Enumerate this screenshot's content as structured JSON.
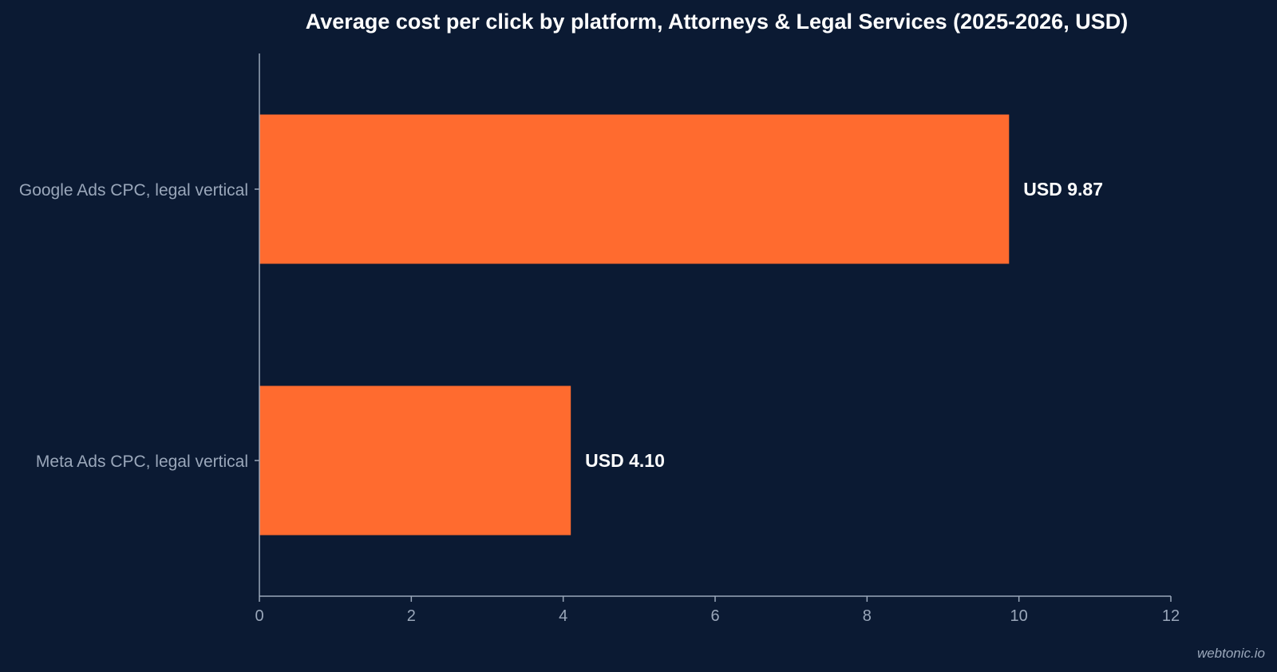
{
  "chart_data": {
    "type": "bar",
    "orientation": "horizontal",
    "title": "Average cost per click by platform, Attorneys & Legal Services (2025-2026, USD)",
    "xlabel": "",
    "ylabel": "",
    "categories": [
      "Google Ads CPC, legal vertical",
      "Meta Ads CPC, legal vertical"
    ],
    "values": [
      9.87,
      4.1
    ],
    "data_labels": [
      "USD 9.87",
      "USD 4.10"
    ],
    "xlim": [
      0,
      12
    ],
    "xticks": [
      0,
      2,
      4,
      6,
      8,
      10,
      12
    ],
    "bar_color": "#ff6b2f",
    "grid": false,
    "legend": "none"
  },
  "watermark": "webtonic.io",
  "colors": {
    "background": "#0b1a33",
    "axis": "#9aa7ba",
    "text": "#ffffff"
  }
}
